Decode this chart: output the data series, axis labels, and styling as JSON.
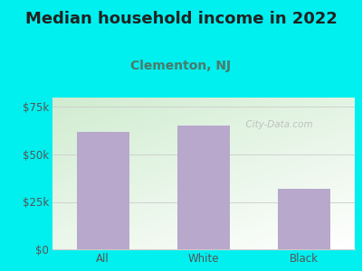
{
  "title": "Median household income in 2022",
  "subtitle": "Clementon, NJ",
  "categories": [
    "All",
    "White",
    "Black"
  ],
  "values": [
    62000,
    65000,
    32000
  ],
  "bar_color": "#b8a8cc",
  "background_color": "#00efef",
  "title_color": "#222222",
  "subtitle_color": "#4a7a6a",
  "tick_color": "#555555",
  "grid_color": "#cccccc",
  "ylim": [
    0,
    80000
  ],
  "yticks": [
    0,
    25000,
    50000,
    75000
  ],
  "ytick_labels": [
    "$0",
    "$25k",
    "$50k",
    "$75k"
  ],
  "title_fontsize": 13,
  "subtitle_fontsize": 10,
  "tick_fontsize": 8.5,
  "watermark_text": "  City-Data.com",
  "watermark_color": "#bbbbbb"
}
